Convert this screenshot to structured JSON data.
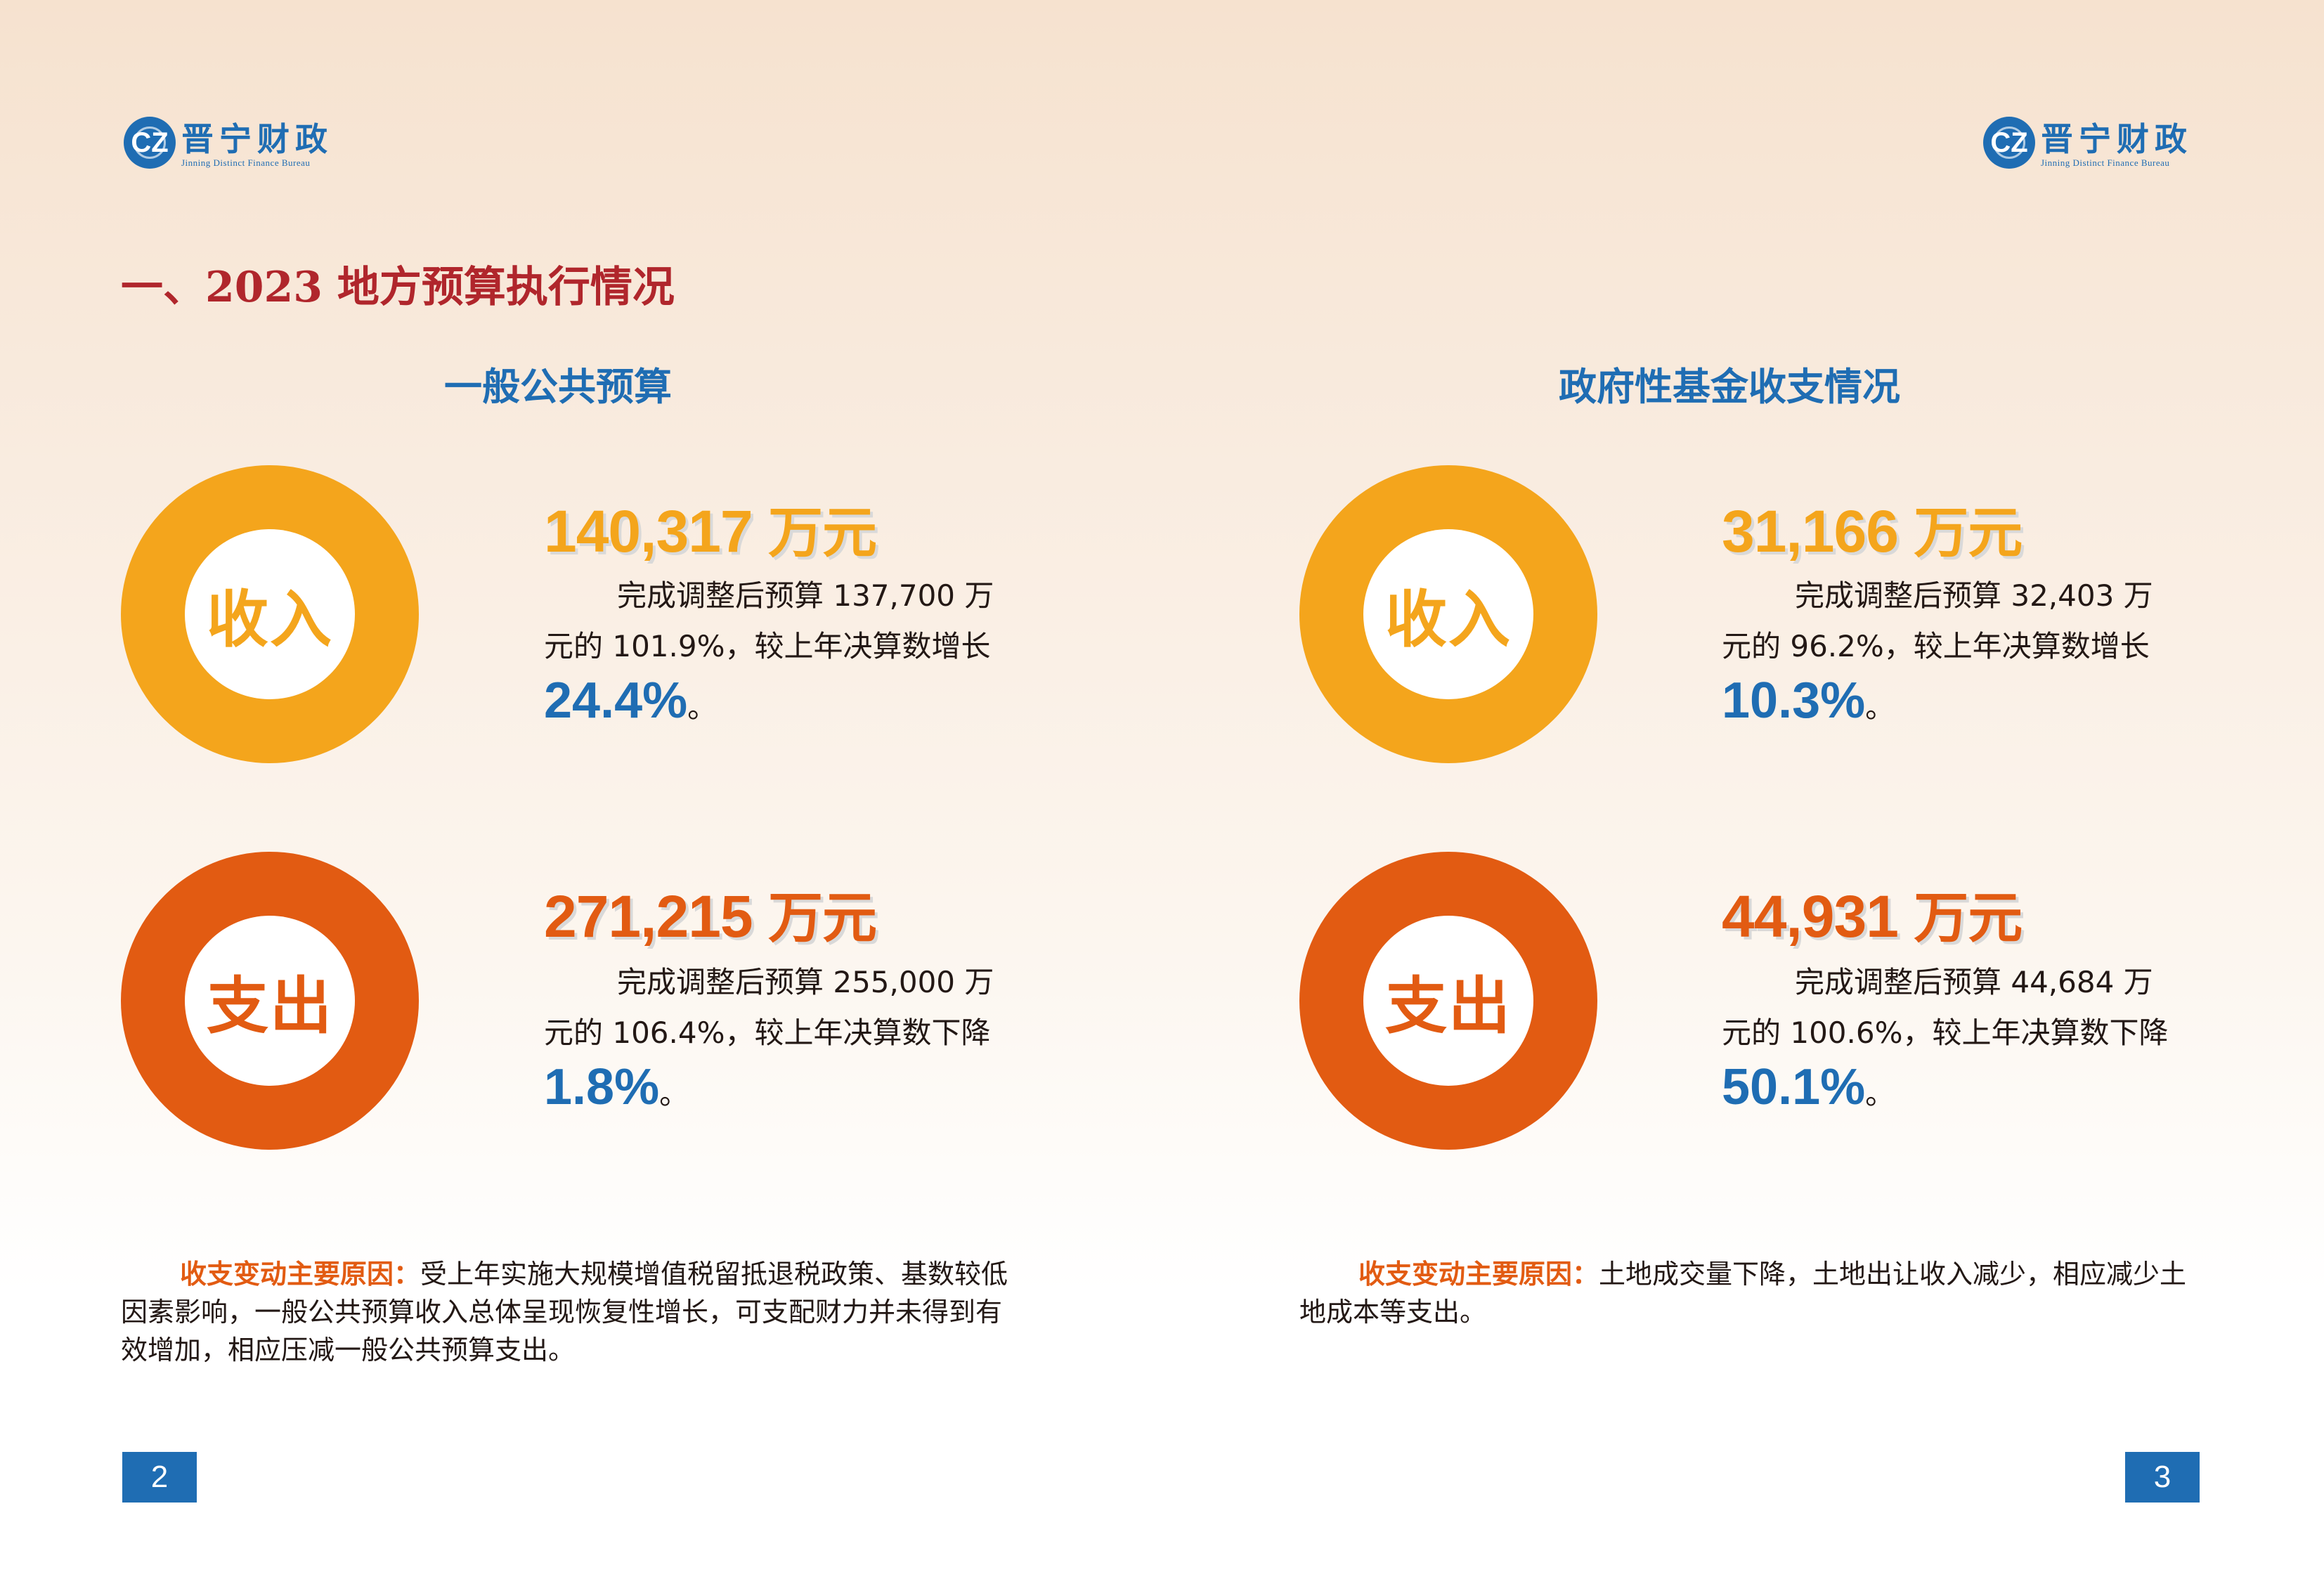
{
  "logo": {
    "mark": "CZ",
    "name_cn": "晋宁财政",
    "name_en": "Jinning Distinct Finance Bureau"
  },
  "section_title": "一、2023 地方预算执行情况",
  "left": {
    "subtitle": "一般公共预算",
    "income": {
      "ring_label": "收入",
      "amount": "140,317",
      "unit": "万元",
      "desc_line1": "完成调整后预算 137,700 万",
      "desc_line2": "元的 101.9%，较上年决算数增长",
      "pct": "24.4%",
      "end": "。"
    },
    "expense": {
      "ring_label": "支出",
      "amount": "271,215",
      "unit": "万元",
      "desc_line1": "完成调整后预算 255,000 万",
      "desc_line2": "元的 106.4%，较上年决算数下降",
      "pct": "1.8%",
      "end": "。"
    },
    "reason": {
      "lead": "收支变动主要原因：",
      "text": "受上年实施大规模增值税留抵退税政策、基数较低因素影响，一般公共预算收入总体呈现恢复性增长，可支配财力并未得到有效增加，相应压减一般公共预算支出。"
    },
    "page_number": "2"
  },
  "right": {
    "subtitle": "政府性基金收支情况",
    "income": {
      "ring_label": "收入",
      "amount": "31,166",
      "unit": "万元",
      "desc_line1": "完成调整后预算 32,403 万",
      "desc_line2": "元的 96.2%，较上年决算数增长",
      "pct": "10.3%",
      "end": "。"
    },
    "expense": {
      "ring_label": "支出",
      "amount": "44,931",
      "unit": "万元",
      "desc_line1": "完成调整后预算 44,684 万",
      "desc_line2": "元的 100.6%，较上年决算数下降",
      "pct": "50.1%",
      "end": "。"
    },
    "reason": {
      "lead": "收支变动主要原因：",
      "text": "土地成交量下降，土地出让收入减少，相应减少土地成本等支出。"
    },
    "page_number": "3"
  },
  "colors": {
    "blue": "#1f6db3",
    "orange_income": "#f4a51c",
    "orange_expense": "#e25b12",
    "title_red": "#b0262c"
  }
}
